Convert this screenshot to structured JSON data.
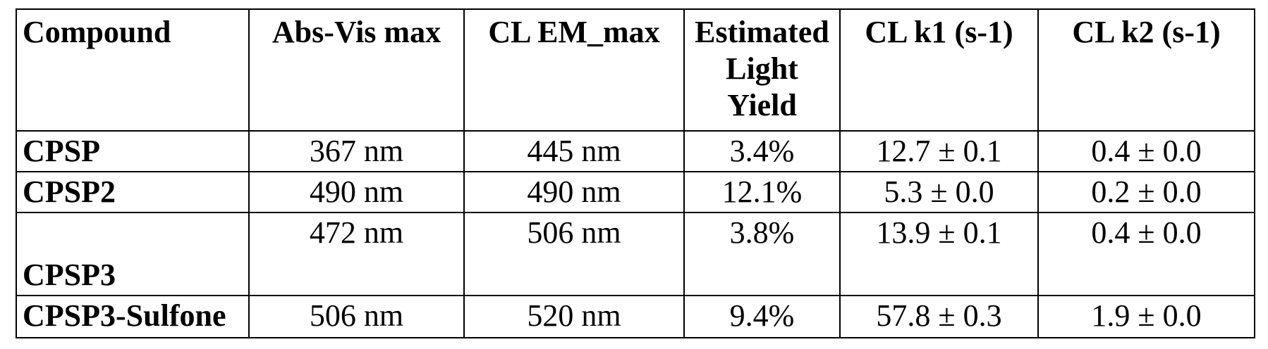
{
  "table": {
    "headers": [
      "Compound",
      "Abs-Vis max",
      "CL EM_max",
      "Estimated Light Yield",
      "CL k1 (s-1)",
      "CL k2 (s-1)"
    ],
    "rows": [
      [
        "CPSP",
        "367 nm",
        "445 nm",
        "3.4%",
        "12.7 ± 0.1",
        "0.4 ± 0.0"
      ],
      [
        "CPSP2",
        "490 nm",
        "490 nm",
        "12.1%",
        "5.3 ± 0.0",
        "0.2 ± 0.0"
      ],
      [
        "CPSP3",
        "472 nm",
        "506 nm",
        "3.8%",
        "13.9 ± 0.1",
        "0.4 ± 0.0"
      ],
      [
        "CPSP3-Sulfone",
        "506 nm",
        "520 nm",
        "9.4%",
        "57.8 ± 0.3",
        "1.9 ± 0.0"
      ]
    ]
  }
}
